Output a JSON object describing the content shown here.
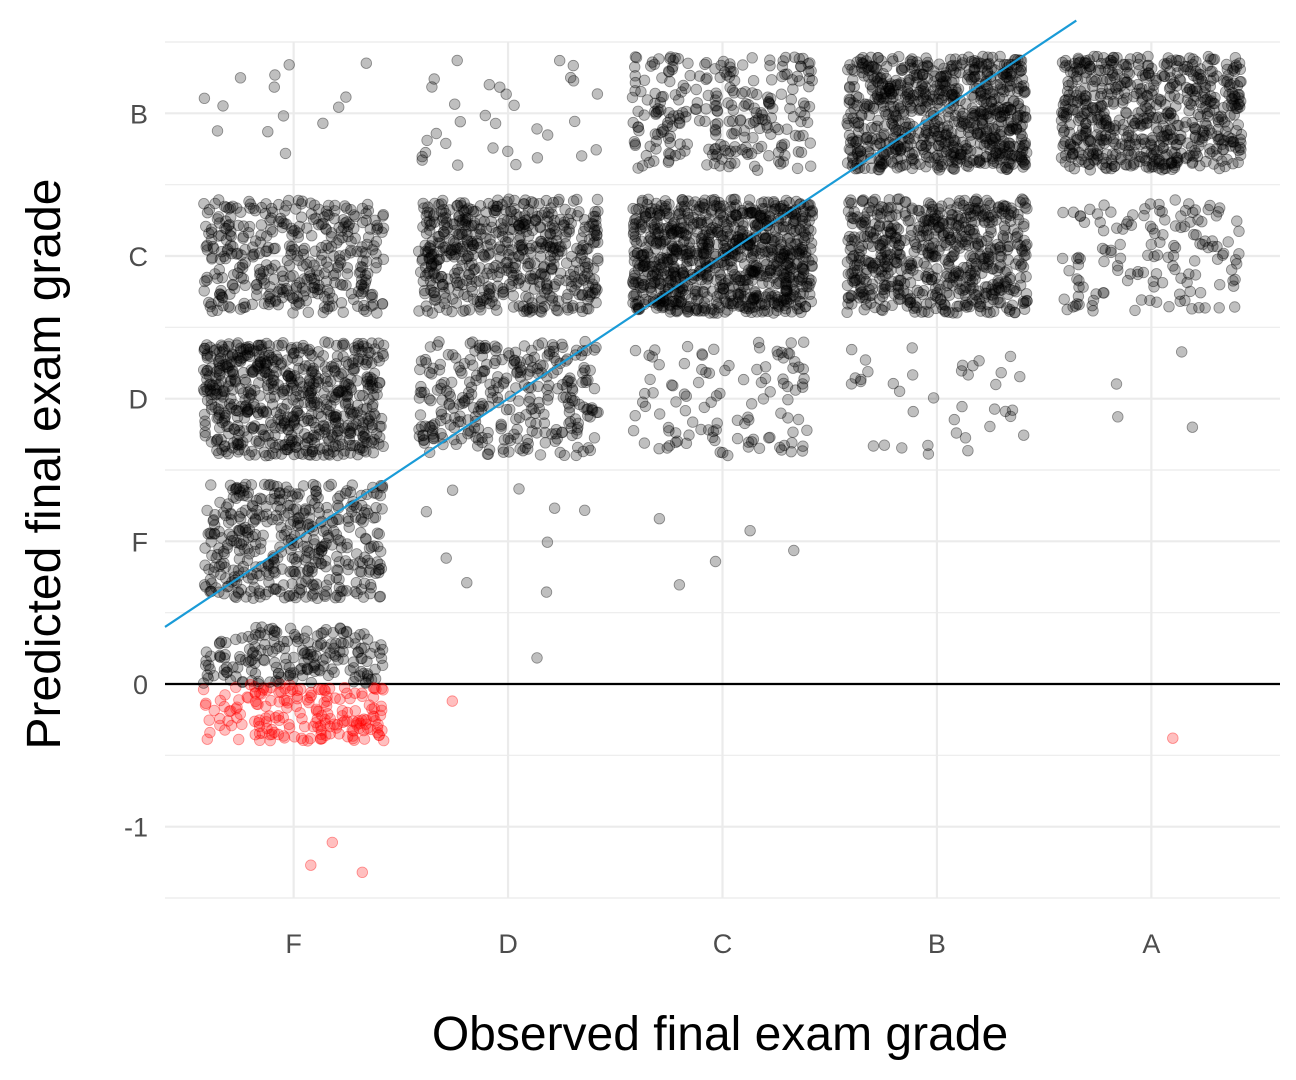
{
  "chart_data": {
    "type": "scatter",
    "xlabel": "Observed final exam grade",
    "ylabel": "Predicted final exam grade",
    "x_categories": [
      "F",
      "D",
      "C",
      "B",
      "A"
    ],
    "y_ticks": [
      {
        "value": -1,
        "label": "-1"
      },
      {
        "value": 0,
        "label": "0"
      },
      {
        "value": 1,
        "label": "F"
      },
      {
        "value": 2,
        "label": "D"
      },
      {
        "value": 3,
        "label": "C"
      },
      {
        "value": 4,
        "label": "B"
      }
    ],
    "ylim": [
      -1.5,
      4.5
    ],
    "xlim": [
      0.4,
      5.6
    ],
    "grid": true,
    "jitter": {
      "x_half_width": 0.42,
      "y_half_width": 0.4
    },
    "point_counts": {
      "F": {
        "0": 380,
        "1": 420,
        "2": 640,
        "3": 380,
        "4": 14
      },
      "D": {
        "0": 1,
        "1": 9,
        "2": 310,
        "3": 560,
        "4": 32
      },
      "C": {
        "1": 5,
        "2": 110,
        "3": 900,
        "4": 260
      },
      "B": {
        "2": 38,
        "3": 640,
        "4": 760
      },
      "A": {
        "2": 4,
        "3": 140,
        "4": 620
      }
    },
    "outliers": [
      {
        "x": 1.08,
        "y": -1.27,
        "color": "red"
      },
      {
        "x": 1.18,
        "y": -1.11,
        "color": "red"
      },
      {
        "x": 1.32,
        "y": -1.32,
        "color": "red"
      },
      {
        "x": 1.74,
        "y": -0.12,
        "color": "red"
      },
      {
        "x": 5.1,
        "y": -0.38,
        "color": "red"
      }
    ],
    "point_colors": {
      "positive": "#000000",
      "negative": "#ff0000"
    },
    "point_opacity": 0.25,
    "reference_line": {
      "color": "#1a9bd7",
      "intercept": 0,
      "slope": 1
    },
    "zero_line": {
      "y": 0,
      "color": "#000000"
    }
  }
}
